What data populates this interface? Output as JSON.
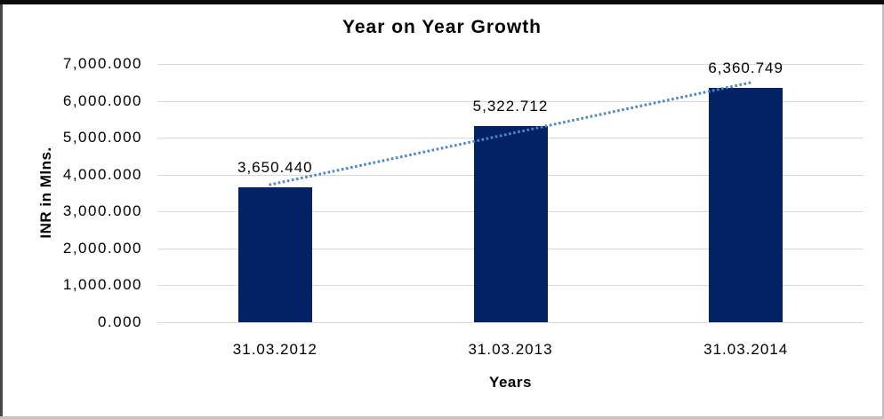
{
  "chart_data": {
    "type": "bar",
    "title": "Year on Year Growth",
    "xlabel": "Years",
    "ylabel": "INR in Mlns.",
    "categories": [
      "31.03.2012",
      "31.03.2013",
      "31.03.2014"
    ],
    "values": [
      3650.44,
      5322.712,
      6360.749
    ],
    "value_labels": [
      "3,650.440",
      "5,322.712",
      "6,360.749"
    ],
    "ylim": [
      0,
      7000
    ],
    "ytick_step": 1000,
    "ytick_labels": [
      "0.000",
      "1,000.000",
      "2,000.000",
      "3,000.000",
      "4,000.000",
      "5,000.000",
      "6,000.000",
      "7,000.000"
    ],
    "grid": true,
    "legend_position": "none",
    "bar_color": "#032266",
    "gridline_color": "#d9d9d9",
    "trendline": {
      "type": "linear",
      "style": "dotted",
      "color": "#4f86c6",
      "fit_values": [
        3756.2,
        5111.3,
        6466.5
      ]
    }
  }
}
